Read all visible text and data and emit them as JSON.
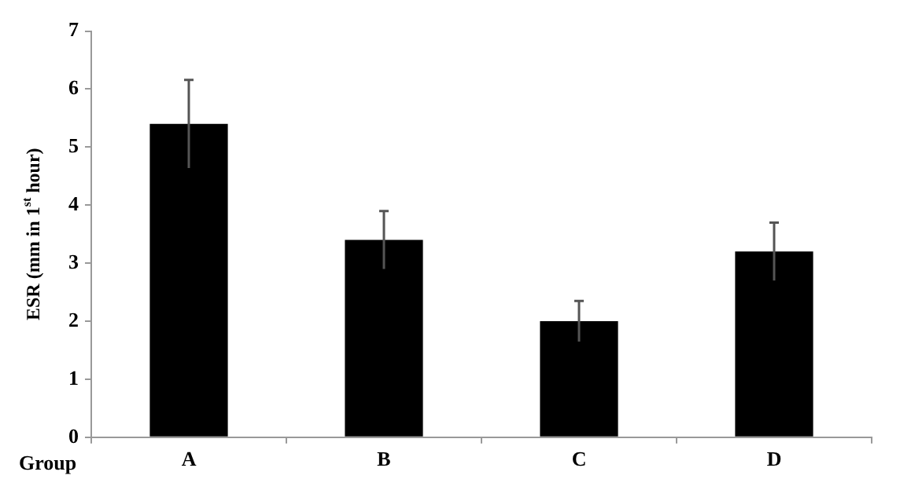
{
  "chart_data": {
    "type": "bar",
    "xlabel": "Group",
    "ylabel": "ESR (mm in 1$^{st}$ hour)",
    "categories": [
      "A",
      "B",
      "C",
      "D"
    ],
    "values": [
      5.4,
      3.4,
      2.0,
      3.2
    ],
    "errors": [
      0.76,
      0.5,
      0.35,
      0.5
    ],
    "color": "#000000",
    "ylim": [
      0,
      7
    ],
    "yticks": [
      0,
      1,
      2,
      3,
      4,
      5,
      6,
      7
    ],
    "grid": false,
    "legend": false
  }
}
